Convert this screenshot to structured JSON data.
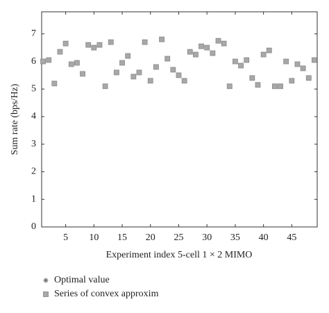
{
  "chart_data": {
    "type": "scatter",
    "x_label": "Experiment index 5-cell 1 × 2 MIMO",
    "y_label": "Sum rate (bps/Hz)",
    "x": [
      1,
      2,
      3,
      4,
      5,
      6,
      7,
      8,
      9,
      10,
      11,
      12,
      13,
      14,
      15,
      16,
      17,
      18,
      19,
      20,
      21,
      22,
      23,
      24,
      25,
      26,
      27,
      28,
      29,
      30,
      31,
      32,
      33,
      34,
      35,
      36,
      37,
      38,
      39,
      40,
      41,
      42,
      43,
      44,
      45,
      46,
      47,
      48,
      49
    ],
    "series": [
      {
        "name": "Optimal value",
        "color": "#777777",
        "marker": "asterisk",
        "values": [
          6.0,
          6.05,
          5.2,
          6.35,
          6.65,
          5.9,
          5.95,
          5.55,
          6.6,
          6.5,
          6.6,
          5.1,
          6.7,
          5.6,
          5.95,
          6.2,
          5.45,
          5.6,
          6.7,
          5.3,
          5.8,
          6.8,
          6.1,
          5.7,
          5.5,
          5.3,
          6.35,
          6.25,
          6.55,
          6.5,
          6.3,
          6.75,
          6.65,
          5.1,
          6.0,
          5.85,
          6.05,
          5.4,
          5.15,
          6.25,
          6.4,
          5.1,
          5.1,
          6.0,
          5.3,
          5.9,
          5.75,
          5.4,
          6.05
        ]
      },
      {
        "name": "Series of convex approxim",
        "color": "#a8a8a8",
        "marker": "square",
        "values": [
          6.0,
          6.05,
          5.2,
          6.35,
          6.65,
          5.9,
          5.95,
          5.55,
          6.6,
          6.5,
          6.6,
          5.1,
          6.7,
          5.6,
          5.95,
          6.2,
          5.45,
          5.6,
          6.7,
          5.3,
          5.8,
          6.8,
          6.1,
          5.7,
          5.5,
          5.3,
          6.35,
          6.25,
          6.55,
          6.5,
          6.3,
          6.75,
          6.65,
          5.1,
          6.0,
          5.85,
          6.05,
          5.4,
          5.15,
          6.25,
          6.4,
          5.1,
          5.1,
          6.0,
          5.3,
          5.9,
          5.75,
          5.4,
          6.05
        ]
      }
    ],
    "xlim": [
      0.75,
      49.5
    ],
    "ylim": [
      0,
      7.8
    ],
    "xticks": [
      5,
      10,
      15,
      20,
      25,
      30,
      35,
      40,
      45
    ],
    "yticks": [
      0,
      1,
      2,
      3,
      4,
      5,
      6,
      7
    ],
    "grid": false,
    "legend": "bottom-left"
  }
}
